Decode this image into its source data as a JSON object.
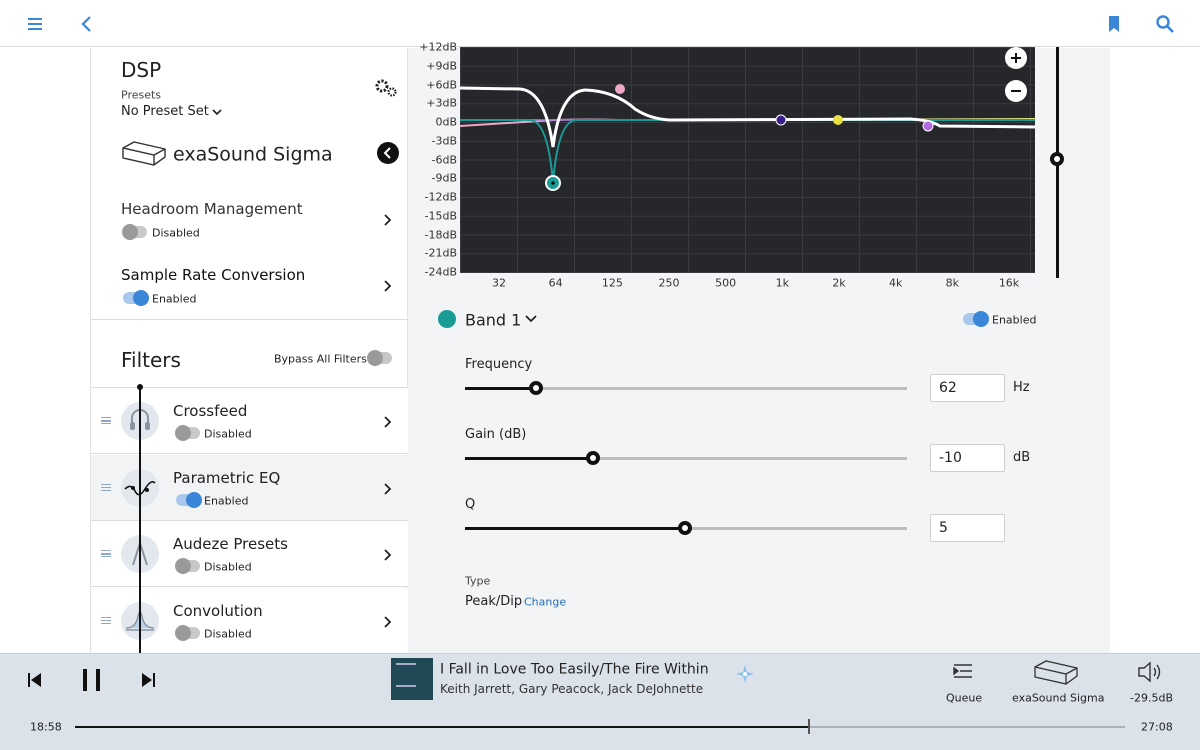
{
  "dsp": {
    "title": "DSP",
    "presets_label": "Presets",
    "preset": "No Preset Set",
    "device": "exaSound Sigma",
    "settings": [
      {
        "name": "Headroom Management",
        "status": "Disabled"
      },
      {
        "name": "Sample Rate Conversion",
        "status": "Enabled"
      }
    ]
  },
  "filters": {
    "title": "Filters",
    "bypass": "Bypass All Filters",
    "items": [
      {
        "name": "Crossfeed",
        "status": "Disabled"
      },
      {
        "name": "Parametric EQ",
        "status": "Enabled"
      },
      {
        "name": "Audeze Presets",
        "status": "Disabled"
      },
      {
        "name": "Convolution",
        "status": "Disabled"
      }
    ]
  },
  "eq_graph": {
    "y_labels": [
      "+12dB",
      "+9dB",
      "+6dB",
      "+3dB",
      "0dB",
      "-3dB",
      "-6dB",
      "-9dB",
      "-12dB",
      "-15dB",
      "-18dB",
      "-21dB",
      "-24dB"
    ],
    "x_labels": [
      "32",
      "64",
      "125",
      "250",
      "500",
      "1k",
      "2k",
      "4k",
      "8k",
      "16k"
    ]
  },
  "band": {
    "name": "Band 1",
    "status": "Enabled",
    "params": [
      {
        "label": "Frequency",
        "value": 62,
        "unit": "Hz"
      },
      {
        "label": "Gain (dB)",
        "value": -10,
        "unit": "dB"
      },
      {
        "label": "Q",
        "value": 5
      }
    ],
    "type_label": "Type",
    "type": "Peak/Dip",
    "change": "Change"
  },
  "player": {
    "track": "I Fall in Love Too Easily/The Fire Within",
    "artist": "Keith Jarrett, Gary Peacock, Jack DeJohnette",
    "queue": "Queue",
    "zone": "exaSound Sigma",
    "volume": "-29.5dB",
    "elapsed": "18:58",
    "total": "27:08"
  }
}
